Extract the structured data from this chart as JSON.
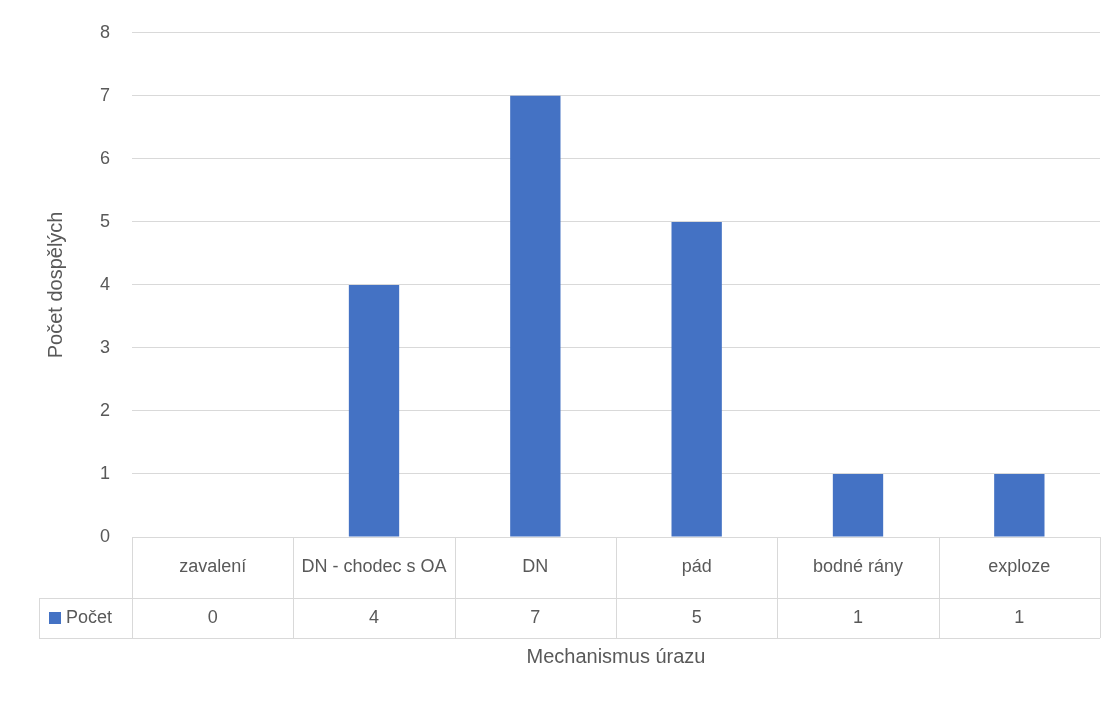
{
  "chart_data": {
    "type": "bar",
    "xlabel": "Mechanismus úrazu",
    "ylabel": "Počet dospělých",
    "categories": [
      "zavalení",
      "DN - chodec s OA",
      "DN",
      "pád",
      "bodné rány",
      "exploze"
    ],
    "series": [
      {
        "name": "Počet",
        "color": "#4472c4",
        "values": [
          0,
          4,
          7,
          5,
          1,
          1
        ]
      }
    ],
    "ylim": [
      0,
      8
    ],
    "yticks": [
      0,
      1,
      2,
      3,
      4,
      5,
      6,
      7,
      8
    ],
    "grid": "y",
    "data_labels": true
  }
}
